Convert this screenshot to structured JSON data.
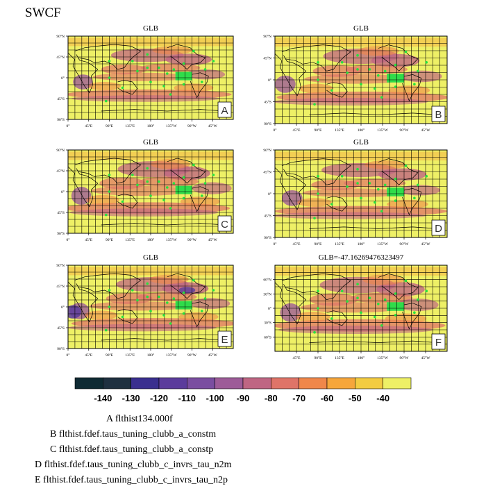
{
  "page_title": "SWCF",
  "colorbar": {
    "tick_labels": [
      "-140",
      "-130",
      "-120",
      "-110",
      "-100",
      "-90",
      "-80",
      "-70",
      "-60",
      "-50",
      "-40"
    ],
    "colors": [
      "#0f2a33",
      "#1f3040",
      "#3a2f8f",
      "#5b3c9c",
      "#7a4ea0",
      "#9d5c98",
      "#bf6683",
      "#df7468",
      "#f0874a",
      "#f6a63b",
      "#f3cc41",
      "#eef066"
    ]
  },
  "legend_lines": [
    "A  flthist134.000f",
    "B  flthist.fdef.taus_tuning_clubb_a_constm",
    "C  flthist.fdef.taus_tuning_clubb_a_constp",
    "D  flthist.fdef.taus_tuning_clubb_c_invrs_tau_n2m",
    "E  flthist.fdef.taus_tuning_clubb_c_invrs_tau_n2p"
  ],
  "chart_data": [
    {
      "type": "heatmap",
      "title": "GLB",
      "panel_label": "A",
      "x_tick_labels": [
        "0°",
        "45°E",
        "90°E",
        "135°E",
        "180°",
        "135°W",
        "90°W",
        "45°W"
      ],
      "y_tick_labels": [
        "90°N",
        "45°N",
        "0°",
        "45°S",
        "90°S"
      ],
      "colorscale": "SWCF -140 to -40 W/m2"
    },
    {
      "type": "heatmap",
      "title": "GLB",
      "panel_label": "B",
      "x_tick_labels": [
        "0°",
        "45°E",
        "90°E",
        "135°E",
        "180°",
        "135°W",
        "90°W",
        "45°W"
      ],
      "y_tick_labels": [
        "90°N",
        "45°N",
        "0°",
        "45°S",
        "90°S"
      ],
      "colorscale": "SWCF -140 to -40 W/m2"
    },
    {
      "type": "heatmap",
      "title": "GLB",
      "panel_label": "C",
      "x_tick_labels": [
        "0°",
        "45°E",
        "90°E",
        "135°E",
        "180°",
        "135°W",
        "90°W",
        "45°W"
      ],
      "y_tick_labels": [
        "90°N",
        "45°N",
        "0°",
        "45°S",
        "90°S"
      ],
      "colorscale": "SWCF -140 to -40 W/m2"
    },
    {
      "type": "heatmap",
      "title": "GLB",
      "panel_label": "D",
      "x_tick_labels": [
        "0°",
        "45°E",
        "90°E",
        "135°E",
        "180°",
        "135°W",
        "90°W",
        "45°W"
      ],
      "y_tick_labels": [
        "90°N",
        "45°N",
        "0°",
        "45°S",
        "90°S"
      ],
      "colorscale": "SWCF -140 to -40 W/m2"
    },
    {
      "type": "heatmap",
      "title": "GLB",
      "panel_label": "E",
      "x_tick_labels": [
        "0°",
        "45°E",
        "90°E",
        "135°E",
        "180°",
        "135°W",
        "90°W",
        "45°W"
      ],
      "y_tick_labels": [
        "90°N",
        "45°N",
        "0°",
        "45°S",
        "90°S"
      ],
      "colorscale": "SWCF -140 to -40 W/m2"
    },
    {
      "type": "heatmap",
      "title": "GLB=-47.16269476323497",
      "panel_label": "F",
      "x_tick_labels": [
        "45°E",
        "90°E",
        "135°E",
        "180°",
        "135°W",
        "90°W",
        "45°W"
      ],
      "y_tick_labels": [
        "60°N",
        "30°N",
        "0°",
        "30°S",
        "60°S"
      ],
      "colorscale": "SWCF -140 to -40 W/m2"
    }
  ]
}
